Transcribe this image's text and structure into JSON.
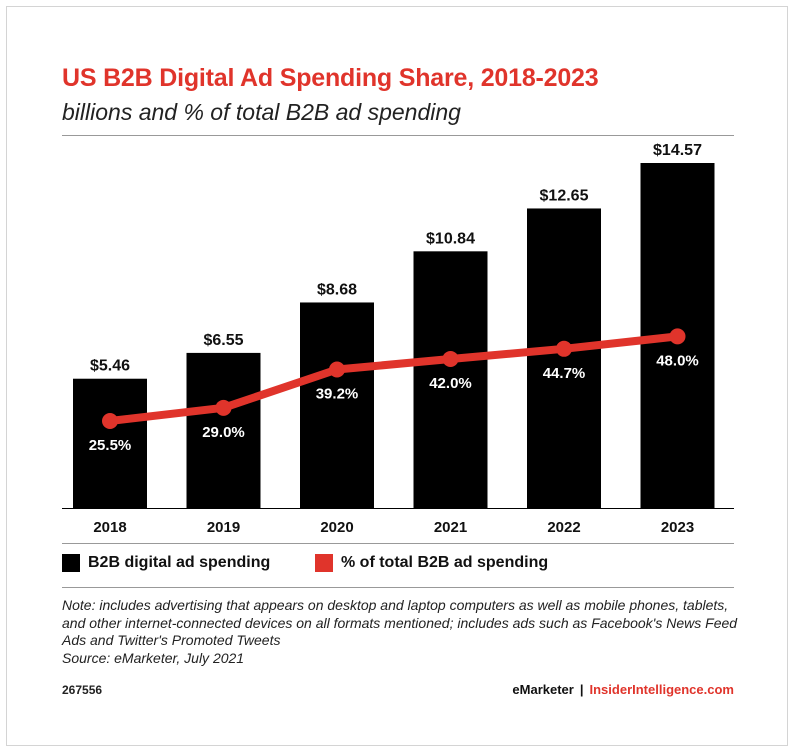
{
  "chart_data": {
    "type": "bar",
    "title": "US B2B Digital Ad Spending Share, 2018-2023",
    "subtitle": "billions and % of total B2B ad spending",
    "categories": [
      "2018",
      "2019",
      "2020",
      "2021",
      "2022",
      "2023"
    ],
    "series": [
      {
        "name": "B2B digital ad spending",
        "type": "bar",
        "values": [
          5.46,
          6.55,
          8.68,
          10.84,
          12.65,
          14.57
        ],
        "labels": [
          "$5.46",
          "$6.55",
          "$8.68",
          "$10.84",
          "$12.65",
          "$14.57"
        ],
        "color": "#000000"
      },
      {
        "name": "% of total B2B ad spending",
        "type": "line",
        "values": [
          25.5,
          29.0,
          39.2,
          42.0,
          44.7,
          48.0
        ],
        "labels": [
          "25.5%",
          "29.0%",
          "39.2%",
          "42.0%",
          "44.7%",
          "48.0%"
        ],
        "color": "#e0342b"
      }
    ],
    "legend_position": "bottom-left",
    "grid": false
  },
  "note": "Note: includes advertising that appears on desktop and laptop computers as well as mobile phones, tablets, and other internet-connected devices on all formats mentioned; includes ads such as Facebook's News Feed Ads and Twitter's Promoted Tweets",
  "source": "Source: eMarketer, July 2021",
  "footer": {
    "chart_id": "267556",
    "brand_primary": "eMarketer",
    "separator": "|",
    "brand_secondary": "InsiderIntelligence.com"
  }
}
